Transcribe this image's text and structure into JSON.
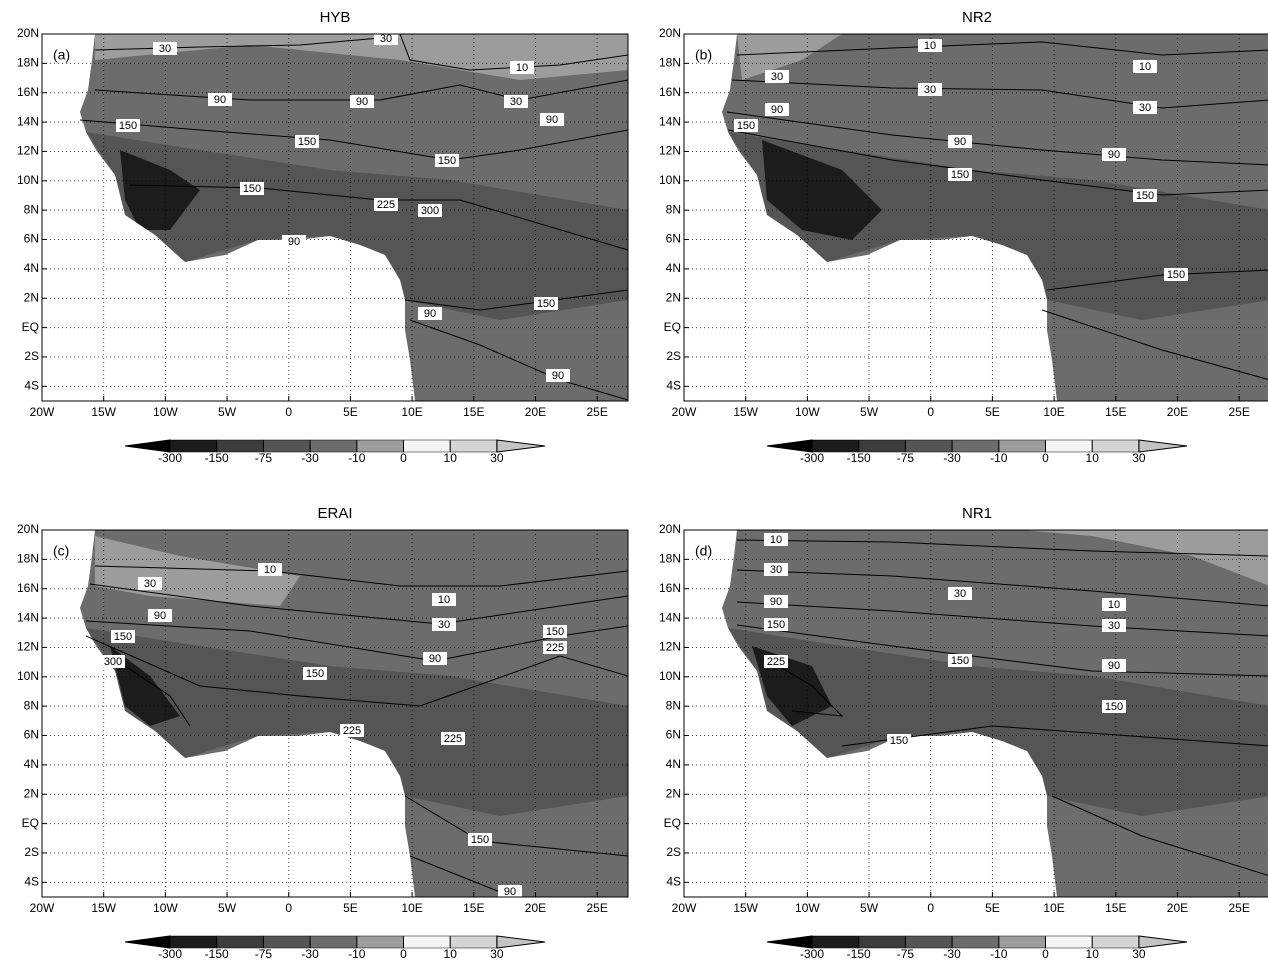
{
  "map": {
    "xlim": [
      -20,
      27.5
    ],
    "ylim": [
      -5,
      20
    ],
    "lon_ticks": [
      {
        "value": -20,
        "label": "20W"
      },
      {
        "value": -15,
        "label": "15W"
      },
      {
        "value": -10,
        "label": "10W"
      },
      {
        "value": -5,
        "label": "5W"
      },
      0,
      {
        "value": 5,
        "label": "5E"
      },
      {
        "value": 10,
        "label": "10E"
      },
      {
        "value": 15,
        "label": "15E"
      },
      {
        "value": 20,
        "label": "20E"
      },
      {
        "value": 25,
        "label": "25E"
      }
    ],
    "lat_ticks": [
      {
        "value": 20,
        "label": "20N"
      },
      {
        "value": 18,
        "label": "18N"
      },
      {
        "value": 16,
        "label": "16N"
      },
      {
        "value": 14,
        "label": "14N"
      },
      {
        "value": 12,
        "label": "12N"
      },
      {
        "value": 10,
        "label": "10N"
      },
      {
        "value": 8,
        "label": "8N"
      },
      {
        "value": 6,
        "label": "6N"
      },
      {
        "value": 4,
        "label": "4N"
      },
      {
        "value": 2,
        "label": "2N"
      },
      {
        "value": 0,
        "label": "EQ"
      },
      {
        "value": -2,
        "label": "2S"
      },
      {
        "value": -4,
        "label": "4S"
      }
    ],
    "colorbar": {
      "levels": [
        -300,
        -150,
        -75,
        -30,
        -10,
        0,
        10,
        30
      ],
      "colors": [
        "#000000",
        "#1c1c1c",
        "#3c3c3c",
        "#555555",
        "#6c6c6c",
        "#9c9c9c",
        "#f4f4f4",
        "#d4d4d4",
        "#c4c4c4"
      ]
    },
    "panels": [
      {
        "title": "HYB",
        "letter": "(a)",
        "contour_labels": [
          30,
          30,
          10,
          30,
          90,
          90,
          90,
          150,
          150,
          150,
          150,
          225,
          300,
          90,
          150,
          90,
          90
        ]
      },
      {
        "title": "NR2",
        "letter": "(b)",
        "contour_labels": [
          10,
          10,
          30,
          30,
          30,
          90,
          150,
          90,
          90,
          150,
          150,
          150
        ]
      },
      {
        "title": "ERAI",
        "letter": "(c)",
        "contour_labels": [
          10,
          30,
          90,
          150,
          300,
          10,
          30,
          90,
          150,
          225,
          150,
          225,
          225,
          150,
          90
        ]
      },
      {
        "title": "NR1",
        "letter": "(d)",
        "contour_labels": [
          10,
          30,
          30,
          90,
          10,
          150,
          30,
          150,
          90,
          225,
          150,
          150
        ]
      }
    ]
  }
}
